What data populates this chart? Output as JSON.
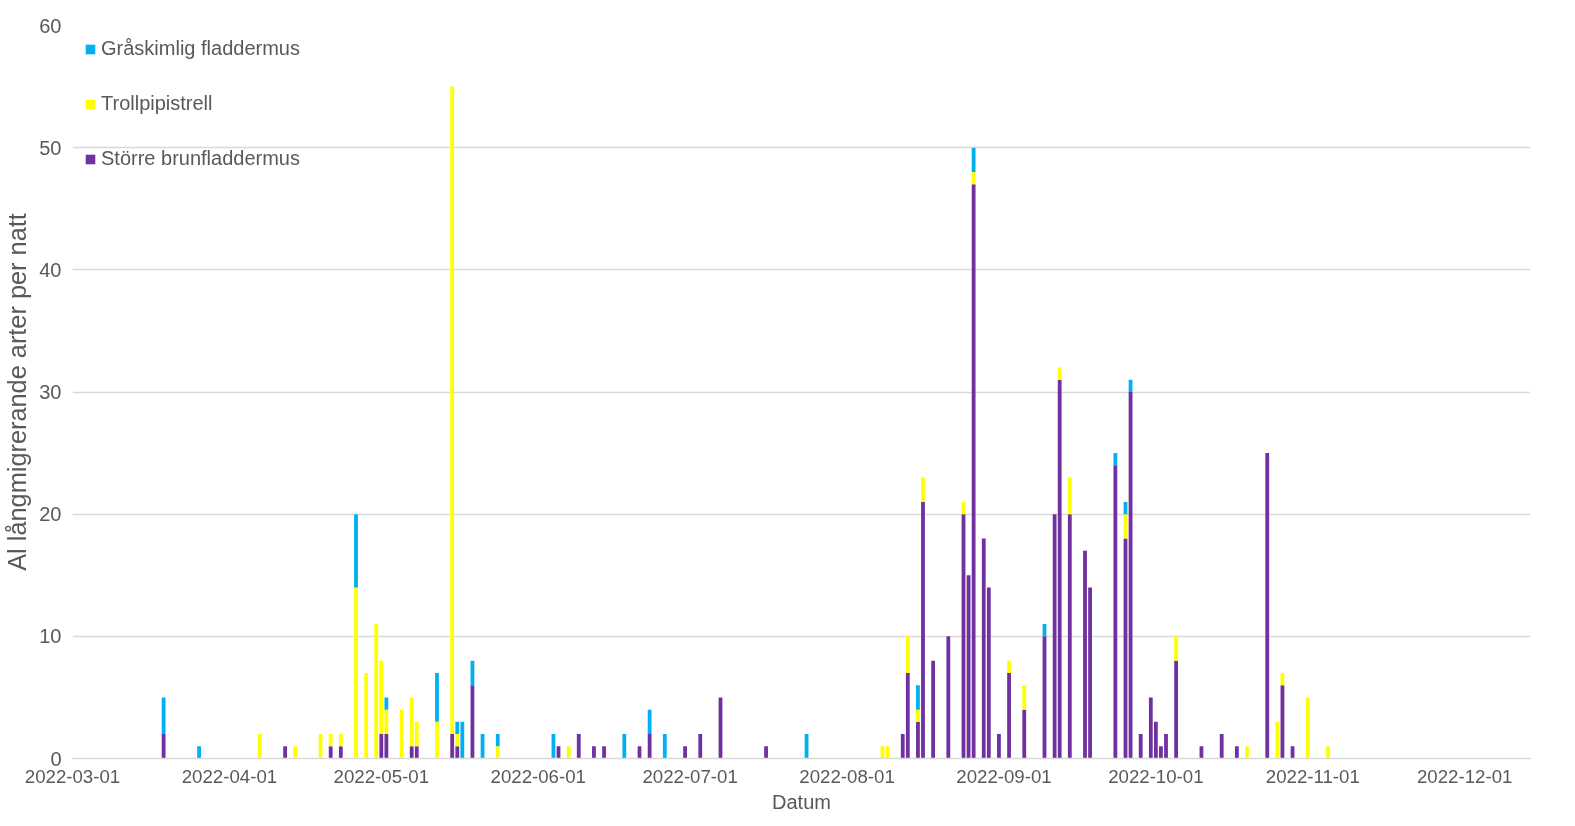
{
  "chart_data": {
    "type": "bar",
    "stacked": true,
    "xlabel": "Datum",
    "ylabel": "Al långmigrerande arter per natt",
    "x": [
      "2022-03-19",
      "2022-03-26",
      "2022-04-07",
      "2022-04-12",
      "2022-04-14",
      "2022-04-19",
      "2022-04-21",
      "2022-04-23",
      "2022-04-26",
      "2022-04-28",
      "2022-04-30",
      "2022-05-01",
      "2022-05-02",
      "2022-05-05",
      "2022-05-07",
      "2022-05-08",
      "2022-05-12",
      "2022-05-15",
      "2022-05-16",
      "2022-05-17",
      "2022-05-19",
      "2022-05-21",
      "2022-05-24",
      "2022-06-04",
      "2022-06-05",
      "2022-06-07",
      "2022-06-09",
      "2022-06-12",
      "2022-06-14",
      "2022-06-18",
      "2022-06-21",
      "2022-06-23",
      "2022-06-26",
      "2022-06-30",
      "2022-07-03",
      "2022-07-07",
      "2022-07-16",
      "2022-07-24",
      "2022-08-08",
      "2022-08-09",
      "2022-08-12",
      "2022-08-13",
      "2022-08-15",
      "2022-08-16",
      "2022-08-18",
      "2022-08-21",
      "2022-08-24",
      "2022-08-25",
      "2022-08-26",
      "2022-08-28",
      "2022-08-29",
      "2022-08-31",
      "2022-09-02",
      "2022-09-05",
      "2022-09-09",
      "2022-09-11",
      "2022-09-12",
      "2022-09-14",
      "2022-09-17",
      "2022-09-18",
      "2022-09-23",
      "2022-09-25",
      "2022-09-26",
      "2022-09-28",
      "2022-09-30",
      "2022-10-01",
      "2022-10-02",
      "2022-10-03",
      "2022-10-05",
      "2022-10-10",
      "2022-10-14",
      "2022-10-17",
      "2022-10-19",
      "2022-10-23",
      "2022-10-25",
      "2022-10-26",
      "2022-10-28",
      "2022-10-31",
      "2022-11-04"
    ],
    "series": [
      {
        "name": "Större brunfladdermus",
        "color": "#7030a0",
        "values": [
          2,
          null,
          null,
          1,
          null,
          null,
          1,
          1,
          null,
          null,
          null,
          2,
          2,
          null,
          1,
          1,
          null,
          2,
          1,
          null,
          6,
          null,
          null,
          null,
          1,
          null,
          2,
          1,
          1,
          null,
          1,
          2,
          null,
          1,
          2,
          5,
          1,
          null,
          null,
          null,
          2,
          7,
          3,
          21,
          8,
          10,
          20,
          15,
          47,
          18,
          14,
          2,
          7,
          4,
          10,
          20,
          31,
          20,
          17,
          14,
          24,
          18,
          30,
          2,
          5,
          3,
          1,
          2,
          8,
          1,
          2,
          1,
          null,
          25,
          null,
          6,
          1,
          null,
          null
        ]
      },
      {
        "name": "Trollpipistrell",
        "color": "#ffff00",
        "values": [
          null,
          null,
          2,
          null,
          1,
          2,
          1,
          1,
          14,
          7,
          11,
          6,
          2,
          4,
          4,
          2,
          3,
          53,
          1,
          null,
          null,
          null,
          1,
          null,
          null,
          1,
          null,
          null,
          null,
          null,
          null,
          null,
          null,
          null,
          null,
          null,
          null,
          null,
          1,
          1,
          null,
          3,
          1,
          2,
          null,
          null,
          1,
          null,
          1,
          null,
          null,
          null,
          1,
          2,
          null,
          null,
          1,
          3,
          null,
          null,
          null,
          2,
          null,
          null,
          null,
          null,
          null,
          null,
          2,
          null,
          null,
          null,
          1,
          null,
          3,
          1,
          null,
          5,
          1
        ]
      },
      {
        "name": "Gråskimlig fladdermus",
        "color": "#00b0f0",
        "values": [
          3,
          1,
          null,
          null,
          null,
          null,
          null,
          null,
          6,
          null,
          null,
          null,
          1,
          null,
          null,
          null,
          4,
          null,
          1,
          3,
          2,
          2,
          1,
          2,
          null,
          null,
          null,
          null,
          null,
          2,
          null,
          2,
          2,
          null,
          null,
          null,
          null,
          2,
          null,
          null,
          null,
          null,
          2,
          null,
          null,
          null,
          null,
          null,
          2,
          null,
          null,
          null,
          null,
          null,
          1,
          null,
          null,
          null,
          null,
          null,
          1,
          1,
          1,
          null,
          null,
          null,
          null,
          null,
          null,
          null,
          null,
          null,
          null,
          null,
          null,
          null,
          null,
          null,
          null
        ]
      }
    ],
    "xlim": [
      "2022-03-01",
      "2022-12-14"
    ],
    "xticks": [
      "2022-03-01",
      "2022-04-01",
      "2022-05-01",
      "2022-06-01",
      "2022-07-01",
      "2022-08-01",
      "2022-09-01",
      "2022-10-01",
      "2022-11-01",
      "2022-12-01"
    ],
    "ylim": [
      0,
      60
    ],
    "yticks": [
      0,
      10,
      20,
      30,
      40,
      50,
      60
    ],
    "grid": "y",
    "legend": "top left"
  }
}
